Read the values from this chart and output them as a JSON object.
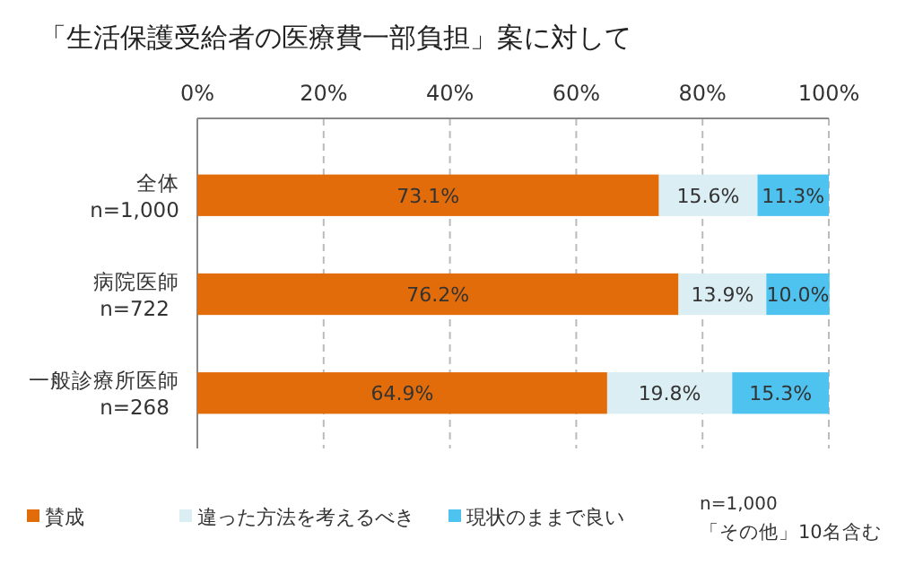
{
  "chart_data": {
    "type": "bar",
    "orientation": "horizontal",
    "stacked": true,
    "title": "「生活保護受給者の医療費一部負担」案に対して",
    "categories": [
      "全体\nn=1,000",
      "病院医師\nn=722",
      "一般診療所医師\nn=268"
    ],
    "series": [
      {
        "name": "賛成",
        "color": "#e36c0a",
        "values": [
          73.1,
          76.2,
          64.9
        ]
      },
      {
        "name": "違った方法を考えるべき",
        "color": "#dbeef4",
        "values": [
          15.6,
          13.9,
          19.8
        ]
      },
      {
        "name": "現状のままで良い",
        "color": "#4fc3f0",
        "values": [
          11.3,
          10.0,
          15.3
        ]
      }
    ],
    "value_labels": [
      [
        "73.1%",
        "76.2%",
        "64.9%"
      ],
      [
        "15.6%",
        "13.9%",
        "19.8%"
      ],
      [
        "11.3%",
        "10.0%",
        "15.3%"
      ]
    ],
    "xlim": [
      0,
      100
    ],
    "xticks": [
      {
        "value": 0,
        "label": "0%"
      },
      {
        "value": 20,
        "label": "20%"
      },
      {
        "value": 40,
        "label": "40%"
      },
      {
        "value": 60,
        "label": "60%"
      },
      {
        "value": 80,
        "label": "80%"
      },
      {
        "value": 100,
        "label": "100%"
      }
    ],
    "grid": "x",
    "legend": "bottom",
    "annotations": [
      "n=1,000",
      "「その他」10名含む"
    ]
  }
}
